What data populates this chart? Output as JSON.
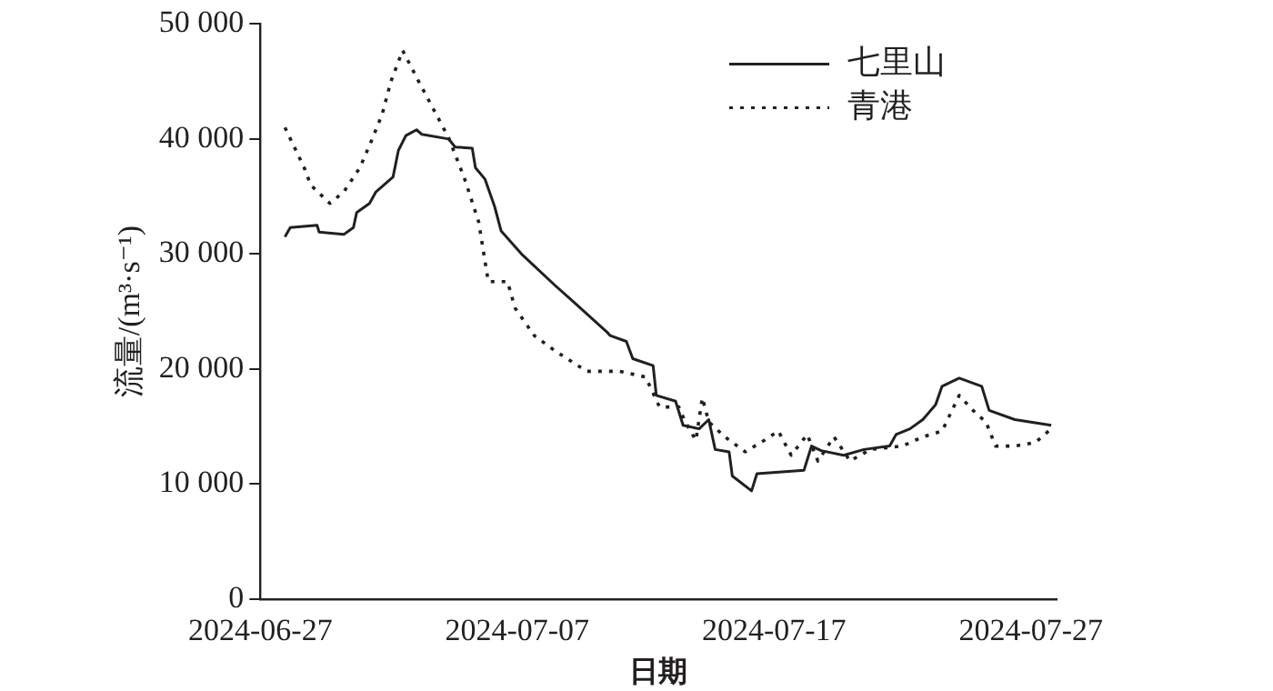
{
  "chart_data": {
    "type": "line",
    "xlabel": "日期",
    "ylabel": "流量/(m³·s⁻¹)",
    "xlim": [
      "2024-06-27",
      "2024-07-28"
    ],
    "xticks": [
      "2024-06-27",
      "2024-07-07",
      "2024-07-17",
      "2024-07-27"
    ],
    "ylim": [
      0,
      50000
    ],
    "yticks": [
      {
        "value": 0,
        "label": "0"
      },
      {
        "value": 10000,
        "label": "10 000"
      },
      {
        "value": 20000,
        "label": "20 000"
      },
      {
        "value": 30000,
        "label": "30 000"
      },
      {
        "value": 40000,
        "label": "40 000"
      },
      {
        "value": 50000,
        "label": "50 000"
      }
    ],
    "legend": "top right",
    "marker": "none",
    "series": [
      {
        "name": "七里山",
        "color": "#231f20",
        "line_style": "solid",
        "x": [
          "2024-06-27T23:00",
          "2024-06-28T04:00",
          "2024-06-29T05:00",
          "2024-06-29T07:00",
          "2024-06-30T06:00",
          "2024-06-30T15:00",
          "2024-06-30T18:00",
          "2024-07-01T06:00",
          "2024-07-01T12:00",
          "2024-07-02T04:00",
          "2024-07-02T09:00",
          "2024-07-02T16:00",
          "2024-07-03T02:00",
          "2024-07-03T07:00",
          "2024-07-04T08:00",
          "2024-07-04T14:00",
          "2024-07-05T06:00",
          "2024-07-05T09:00",
          "2024-07-05T18:00",
          "2024-07-06T03:00",
          "2024-07-06T09:00",
          "2024-07-07T04:00",
          "2024-07-08T11:00",
          "2024-07-09T05:00",
          "2024-07-10T12:00",
          "2024-07-10T15:00",
          "2024-07-11T06:00",
          "2024-07-11T12:00",
          "2024-07-12T07:00",
          "2024-07-12T10:00",
          "2024-07-13T04:00",
          "2024-07-13T11:00",
          "2024-07-14T02:00",
          "2024-07-14T11:00",
          "2024-07-14T17:00",
          "2024-07-15T06:00",
          "2024-07-15T09:00",
          "2024-07-16T03:00",
          "2024-07-16T08:00",
          "2024-07-18T04:00",
          "2024-07-18T11:00",
          "2024-07-18T20:00",
          "2024-07-19T17:00",
          "2024-07-20T12:00",
          "2024-07-21T12:00",
          "2024-07-21T18:00",
          "2024-07-22T07:00",
          "2024-07-22T19:00",
          "2024-07-23T07:00",
          "2024-07-23T13:00",
          "2024-07-24T05:00",
          "2024-07-25T02:00",
          "2024-07-25T09:00",
          "2024-07-26T09:00",
          "2024-07-27T19:00"
        ],
        "values": [
          31500,
          32300,
          32500,
          31900,
          31700,
          32300,
          33600,
          34400,
          35400,
          36700,
          39000,
          40300,
          40800,
          40400,
          40000,
          39300,
          39200,
          37500,
          36500,
          34100,
          32000,
          30000,
          27300,
          25800,
          23200,
          22900,
          22400,
          20900,
          20300,
          17700,
          17200,
          15100,
          14800,
          15600,
          13000,
          12800,
          10700,
          9400,
          10900,
          11200,
          13300,
          12900,
          12500,
          13000,
          13300,
          14300,
          14800,
          15600,
          16900,
          18500,
          19200,
          18500,
          16400,
          15600,
          15100
        ]
      },
      {
        "name": "青港",
        "color": "#231f20",
        "line_style": "dotted",
        "x": [
          "2024-06-27T23:00",
          "2024-06-28T17:00",
          "2024-06-28T23:00",
          "2024-06-29T17:00",
          "2024-06-30T06:00",
          "2024-06-30T21:00",
          "2024-07-01T09:00",
          "2024-07-01T18:00",
          "2024-07-02T02:00",
          "2024-07-02T13:00",
          "2024-07-03T04:00",
          "2024-07-03T20:00",
          "2024-07-04T08:00",
          "2024-07-04T23:00",
          "2024-07-05T12:00",
          "2024-07-05T21:00",
          "2024-07-06T15:00",
          "2024-07-06T22:00",
          "2024-07-07T16:00",
          "2024-07-08T11:00",
          "2024-07-09T17:00",
          "2024-07-11T00:00",
          "2024-07-12T00:00",
          "2024-07-12T13:00",
          "2024-07-13T07:00",
          "2024-07-13T13:00",
          "2024-07-13T23:00",
          "2024-07-14T05:00",
          "2024-07-14T11:00",
          "2024-07-15T02:00",
          "2024-07-15T21:00",
          "2024-07-16T15:00",
          "2024-07-17T04:00",
          "2024-07-17T16:00",
          "2024-07-18T07:00",
          "2024-07-18T17:00",
          "2024-07-19T08:00",
          "2024-07-19T23:00",
          "2024-07-20T18:00",
          "2024-07-22T00:00",
          "2024-07-22T19:00",
          "2024-07-23T13:00",
          "2024-07-24T05:00",
          "2024-07-24T20:00",
          "2024-07-25T06:00",
          "2024-07-25T15:00",
          "2024-07-26T09:00",
          "2024-07-27T04:00",
          "2024-07-27T19:00"
        ],
        "values": [
          41000,
          37500,
          36000,
          34400,
          35400,
          37500,
          40100,
          42200,
          45000,
          47700,
          45000,
          42200,
          40100,
          36500,
          32800,
          27600,
          27600,
          25300,
          22900,
          21600,
          19800,
          19800,
          19300,
          16700,
          16700,
          15400,
          13800,
          17500,
          15400,
          14100,
          12800,
          13800,
          14600,
          12500,
          14300,
          12000,
          14100,
          12000,
          13000,
          13300,
          14100,
          14600,
          17700,
          16200,
          15400,
          13300,
          13300,
          13600,
          14800
        ]
      }
    ]
  }
}
